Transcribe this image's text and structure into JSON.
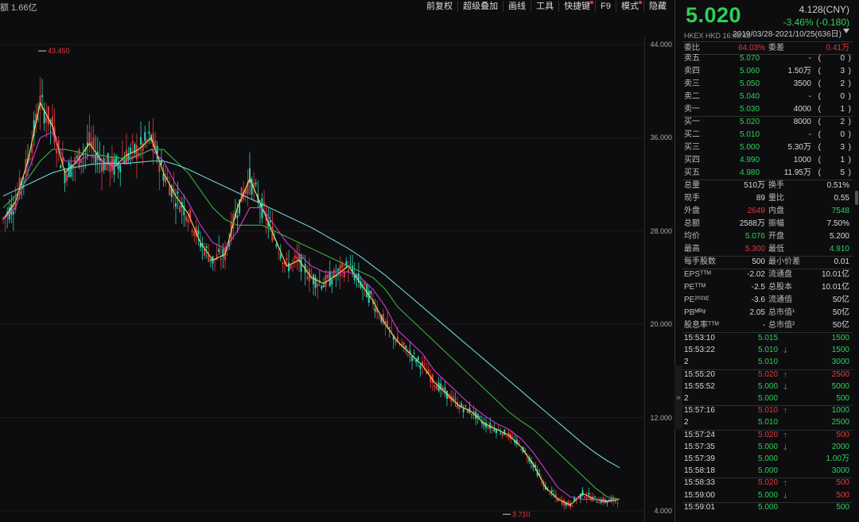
{
  "header": {
    "amount_label": "额 1.66亿"
  },
  "toolbar": [
    {
      "label": "前复权",
      "dot": false
    },
    {
      "label": "超级叠加",
      "dot": false
    },
    {
      "label": "画线",
      "dot": false
    },
    {
      "label": "工具",
      "dot": false
    },
    {
      "label": "快捷键",
      "dot": true
    },
    {
      "label": "F9",
      "dot": false
    },
    {
      "label": "模式",
      "dot": true
    },
    {
      "label": "隐藏",
      "dot": false
    }
  ],
  "range_label": "2019/03/28-2021/10/25(636日)",
  "chart_data": {
    "type": "line",
    "title": "",
    "ylim": [
      4.0,
      44.0
    ],
    "yticks": [
      "44.000",
      "36.000",
      "28.000",
      "20.000",
      "12.000",
      "4.000"
    ],
    "high_label": "43.450",
    "low_label": "3.710",
    "series": [
      {
        "values": [
          29,
          30.5,
          34,
          39,
          37,
          33,
          34,
          35.5,
          34,
          33.5,
          34.5,
          35,
          36,
          33,
          31,
          29.5,
          27,
          25.5,
          26,
          30,
          32.5,
          30,
          27.5,
          25,
          25.5,
          24,
          23.5,
          24.2,
          25,
          23.5,
          22,
          20,
          18.5,
          17.5,
          16.5,
          15,
          14,
          13,
          12.5,
          11.5,
          11,
          10.5,
          9.5,
          8,
          6,
          5,
          4.5,
          5.5,
          5,
          4.8,
          5
        ]
      },
      {
        "values": [
          29,
          30,
          33,
          36,
          36.5,
          34,
          34,
          34.5,
          34,
          33.5,
          34,
          34.5,
          35,
          34,
          32,
          30.5,
          28.5,
          27,
          26.5,
          28,
          30,
          30,
          28.5,
          27,
          26,
          25,
          24.5,
          24.5,
          24.5,
          24,
          23,
          21.5,
          19.5,
          18.5,
          17.5,
          16,
          15,
          14,
          13,
          12.2,
          11.5,
          11,
          10.2,
          9,
          7.5,
          6,
          5.2,
          5,
          5,
          4.9,
          5
        ]
      },
      {
        "values": [
          30,
          31,
          32.5,
          34,
          35,
          35,
          34.8,
          34.5,
          34.5,
          34.3,
          34.2,
          34.5,
          35,
          35,
          34,
          33,
          31.5,
          30,
          29,
          28.5,
          28.5,
          28.5,
          28,
          27.5,
          27,
          26.5,
          26,
          25.5,
          25,
          24.5,
          24,
          23,
          21.5,
          20.5,
          19.5,
          18.5,
          17.5,
          16.5,
          15.5,
          14.5,
          13.5,
          12.5,
          11.7,
          11,
          10,
          9,
          8,
          7,
          6,
          5.2,
          5
        ]
      },
      {
        "values": [
          31,
          31.5,
          32,
          32.5,
          33,
          33.3,
          33.5,
          33.7,
          33.8,
          33.8,
          33.8,
          33.9,
          34,
          34,
          33.7,
          33.3,
          32.8,
          32.3,
          31.8,
          31.3,
          30.8,
          30.3,
          29.8,
          29.3,
          28.8,
          28.3,
          27.7,
          27.1,
          26.5,
          25.8,
          25,
          24.2,
          23.3,
          22.4,
          21.5,
          20.6,
          19.7,
          18.8,
          17.9,
          17,
          16.1,
          15.2,
          14.3,
          13.4,
          12.5,
          11.6,
          10.7,
          9.8,
          9,
          8.3,
          7.7
        ]
      }
    ],
    "series_colors": [
      "#e8e05a",
      "#d43ad4",
      "#3fae3f",
      "#6fd6d6"
    ]
  },
  "quote": {
    "price": "5.020",
    "cny": "4.128(CNY)",
    "change": "-3.46% (-0.180)",
    "meta": "HKEX  HKD  16:08:49"
  },
  "ratio": {
    "l1": "委比",
    "v1": "64.03%",
    "l2": "委差",
    "v2": "0.41万"
  },
  "asks": [
    {
      "label": "卖五",
      "price": "5.070",
      "vol": "-",
      "cnt": "0"
    },
    {
      "label": "卖四",
      "price": "5.060",
      "vol": "1.50万",
      "cnt": "3"
    },
    {
      "label": "卖三",
      "price": "5.050",
      "vol": "3500",
      "cnt": "2"
    },
    {
      "label": "卖二",
      "price": "5.040",
      "vol": "-",
      "cnt": "0"
    },
    {
      "label": "卖一",
      "price": "5.030",
      "vol": "4000",
      "cnt": "1"
    }
  ],
  "bids": [
    {
      "label": "买一",
      "price": "5.020",
      "vol": "8000",
      "cnt": "2"
    },
    {
      "label": "买二",
      "price": "5.010",
      "vol": "-",
      "cnt": "0"
    },
    {
      "label": "买三",
      "price": "5.000",
      "vol": "5.30万",
      "cnt": "3"
    },
    {
      "label": "买四",
      "price": "4.990",
      "vol": "1000",
      "cnt": "1"
    },
    {
      "label": "买五",
      "price": "4.980",
      "vol": "11.95万",
      "cnt": "5"
    }
  ],
  "stats": [
    {
      "l1": "总量",
      "v1": "510万",
      "c1": "w",
      "l2": "换手",
      "v2": "0.51%",
      "c2": "w"
    },
    {
      "l1": "现手",
      "v1": "89",
      "c1": "w",
      "l2": "量比",
      "v2": "0.55",
      "c2": "w"
    },
    {
      "l1": "外盘",
      "v1": "2649",
      "c1": "r",
      "l2": "内盘",
      "v2": "7548",
      "c2": "g"
    },
    {
      "l1": "总额",
      "v1": "2588万",
      "c1": "w",
      "l2": "振幅",
      "v2": "7.50%",
      "c2": "w"
    },
    {
      "l1": "均价",
      "v1": "5.076",
      "c1": "g",
      "l2": "开盘",
      "v2": "5.200",
      "c2": "w"
    },
    {
      "l1": "最高",
      "v1": "5.300",
      "c1": "r",
      "l2": "最低",
      "v2": "4.910",
      "c2": "g"
    },
    {
      "l1": "每手股数",
      "v1": "500",
      "c1": "w",
      "l2": "最小价差",
      "v2": "0.01",
      "c2": "w"
    },
    {
      "l1": "EPSᵀᵀᴹ",
      "v1": "-2.02",
      "c1": "w",
      "l2": "流通盘",
      "v2": "10.01亿",
      "c2": "w"
    },
    {
      "l1": "PEᵀᵀᴹ",
      "v1": "-2.5",
      "c1": "w",
      "l2": "总股本",
      "v2": "10.01亿",
      "c2": "w"
    },
    {
      "l1": "PE²⁰²¹ᴱ",
      "v1": "-3.6",
      "c1": "w",
      "l2": "流通值",
      "v2": "50亿",
      "c2": "w"
    },
    {
      "l1": "PBᴹᴿᵠ",
      "v1": "2.05",
      "c1": "w",
      "l2": "总市值¹",
      "v2": "50亿",
      "c2": "w"
    },
    {
      "l1": "股息率ᵀᵀᴹ",
      "v1": "-",
      "c1": "w",
      "l2": "总市值²",
      "v2": "50亿",
      "c2": "w"
    }
  ],
  "ticks": [
    {
      "time": "15:53:10",
      "price": "5.015",
      "pc": "g",
      "dir": "",
      "vol": "1500",
      "vc": "g"
    },
    {
      "time": "15:53:22",
      "price": "5.010",
      "pc": "g",
      "dir": "down",
      "vol": "1500",
      "vc": "g"
    },
    {
      "time": "2",
      "price": "5.010",
      "pc": "g",
      "dir": "",
      "vol": "3000",
      "vc": "g"
    },
    {
      "time": "15:55:20",
      "price": "5.020",
      "pc": "r",
      "dir": "up",
      "vol": "2500",
      "vc": "r"
    },
    {
      "time": "15:55:52",
      "price": "5.000",
      "pc": "g",
      "dir": "down",
      "vol": "5000",
      "vc": "g"
    },
    {
      "time": "2",
      "price": "5.000",
      "pc": "g",
      "dir": "",
      "vol": "500",
      "vc": "g"
    },
    {
      "time": "15:57:16",
      "price": "5.010",
      "pc": "r",
      "dir": "up",
      "vol": "1000",
      "vc": "g"
    },
    {
      "time": "2",
      "price": "5.010",
      "pc": "g",
      "dir": "",
      "vol": "2500",
      "vc": "g"
    },
    {
      "time": "15:57:24",
      "price": "5.020",
      "pc": "r",
      "dir": "up",
      "vol": "500",
      "vc": "r"
    },
    {
      "time": "15:57:35",
      "price": "5.000",
      "pc": "g",
      "dir": "down",
      "vol": "2000",
      "vc": "g"
    },
    {
      "time": "15:57:39",
      "price": "5.000",
      "pc": "g",
      "dir": "",
      "vol": "1.00万",
      "vc": "g"
    },
    {
      "time": "15:58:18",
      "price": "5.000",
      "pc": "g",
      "dir": "",
      "vol": "3000",
      "vc": "g"
    },
    {
      "time": "15:58:33",
      "price": "5.020",
      "pc": "r",
      "dir": "up",
      "vol": "500",
      "vc": "r"
    },
    {
      "time": "15:59:00",
      "price": "5.000",
      "pc": "g",
      "dir": "down",
      "vol": "500",
      "vc": "r"
    },
    {
      "time": "15:59:01",
      "price": "5.000",
      "pc": "g",
      "dir": "",
      "vol": "500",
      "vc": "g"
    }
  ]
}
